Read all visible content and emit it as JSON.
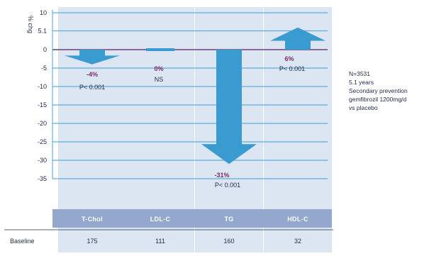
{
  "chart_data": {
    "type": "bar",
    "ylabel": "% chg",
    "ylim": [
      -35,
      10
    ],
    "yticks": [
      "10",
      "5.1",
      "0",
      "-5",
      "-10",
      "-15",
      "-20",
      "-25",
      "-30",
      "-35"
    ],
    "yticks_values": [
      10,
      5.1,
      0,
      -5,
      -10,
      -15,
      -20,
      -25,
      -30,
      -35
    ],
    "categories": [
      "T-Chol",
      "LDL-C",
      "TG",
      "HDL-C"
    ],
    "values": [
      -4,
      0,
      -31,
      6
    ],
    "value_labels": [
      "-4%",
      "0%",
      "-31%",
      "6%"
    ],
    "pvalue_labels": [
      "P< 0.001",
      "NS",
      "P< 0.001",
      "P< 0.001"
    ],
    "baseline_label": "Baseline",
    "baseline_values": [
      "175",
      "111",
      "160",
      "32"
    ],
    "annotation": [
      "N=3531",
      "5.1 years",
      "Secondary prevention",
      "gemfibrozil 1200mg/d",
      "vs placebo"
    ],
    "colors": {
      "arrow": "#3a9bd0",
      "column": "#dce6f2",
      "category_bar": "#93a8cc",
      "grid": "#4aa3d8",
      "zero_line": "#8a6a9a"
    }
  }
}
